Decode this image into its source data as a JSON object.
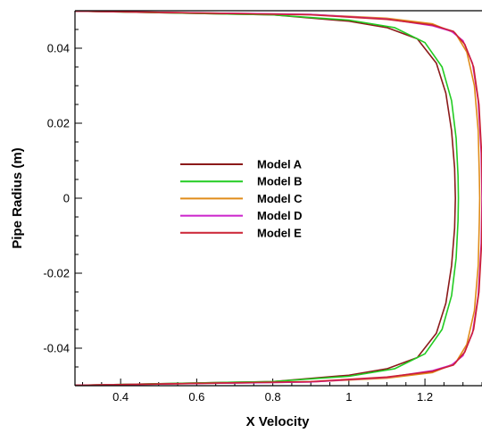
{
  "chart_data": {
    "type": "line",
    "xlabel": "X Velocity",
    "ylabel": "Pipe Radius (m)",
    "xlim": [
      0.28,
      1.35
    ],
    "ylim": [
      -0.05,
      0.05
    ],
    "x_ticks": [
      0.4,
      0.6,
      0.8,
      1,
      1.2
    ],
    "x_tick_labels": [
      "0.4",
      "0.6",
      "0.8",
      "1",
      "1.2"
    ],
    "y_ticks": [
      0.04,
      0.02,
      0,
      -0.02,
      -0.04
    ],
    "y_tick_labels": [
      "0.04",
      "0.02",
      "0",
      "-0.02",
      "-0.04"
    ],
    "legend_position": "center-left",
    "series": [
      {
        "name": "Model A",
        "color": "#8b1a1a",
        "points": [
          [
            0.28,
            0.0499
          ],
          [
            0.8,
            0.0489
          ],
          [
            1.0,
            0.0472
          ],
          [
            1.1,
            0.0455
          ],
          [
            1.18,
            0.0425
          ],
          [
            1.23,
            0.036
          ],
          [
            1.255,
            0.028
          ],
          [
            1.27,
            0.018
          ],
          [
            1.278,
            0.008
          ],
          [
            1.28,
            0.0
          ],
          [
            1.278,
            -0.008
          ],
          [
            1.27,
            -0.018
          ],
          [
            1.255,
            -0.028
          ],
          [
            1.23,
            -0.036
          ],
          [
            1.18,
            -0.0425
          ],
          [
            1.1,
            -0.0455
          ],
          [
            1.0,
            -0.0472
          ],
          [
            0.8,
            -0.0489
          ],
          [
            0.28,
            -0.0499
          ]
        ]
      },
      {
        "name": "Model B",
        "color": "#22cc22",
        "points": [
          [
            0.28,
            0.0499
          ],
          [
            0.8,
            0.0489
          ],
          [
            1.0,
            0.0475
          ],
          [
            1.12,
            0.0455
          ],
          [
            1.2,
            0.0415
          ],
          [
            1.245,
            0.035
          ],
          [
            1.27,
            0.026
          ],
          [
            1.282,
            0.016
          ],
          [
            1.287,
            0.006
          ],
          [
            1.288,
            0.0
          ],
          [
            1.287,
            -0.006
          ],
          [
            1.282,
            -0.016
          ],
          [
            1.27,
            -0.026
          ],
          [
            1.245,
            -0.035
          ],
          [
            1.2,
            -0.0415
          ],
          [
            1.12,
            -0.0455
          ],
          [
            1.0,
            -0.0475
          ],
          [
            0.8,
            -0.0489
          ],
          [
            0.28,
            -0.0499
          ]
        ]
      },
      {
        "name": "Model C",
        "color": "#e08c1a",
        "points": [
          [
            0.28,
            0.0499
          ],
          [
            0.9,
            0.049
          ],
          [
            1.1,
            0.048
          ],
          [
            1.22,
            0.0465
          ],
          [
            1.28,
            0.044
          ],
          [
            1.31,
            0.039
          ],
          [
            1.33,
            0.03
          ],
          [
            1.34,
            0.018
          ],
          [
            1.343,
            0.006
          ],
          [
            1.344,
            0.0
          ],
          [
            1.343,
            -0.006
          ],
          [
            1.34,
            -0.018
          ],
          [
            1.33,
            -0.03
          ],
          [
            1.31,
            -0.039
          ],
          [
            1.28,
            -0.044
          ],
          [
            1.22,
            -0.0465
          ],
          [
            1.1,
            -0.048
          ],
          [
            0.9,
            -0.049
          ],
          [
            0.28,
            -0.0499
          ]
        ]
      },
      {
        "name": "Model D",
        "color": "#cc22cc",
        "points": [
          [
            0.28,
            0.0499
          ],
          [
            0.9,
            0.049
          ],
          [
            1.1,
            0.0478
          ],
          [
            1.22,
            0.046
          ],
          [
            1.27,
            0.0445
          ],
          [
            1.3,
            0.042
          ],
          [
            1.325,
            0.036
          ],
          [
            1.34,
            0.026
          ],
          [
            1.348,
            0.012
          ],
          [
            1.35,
            0.0
          ],
          [
            1.348,
            -0.012
          ],
          [
            1.34,
            -0.026
          ],
          [
            1.325,
            -0.036
          ],
          [
            1.3,
            -0.042
          ],
          [
            1.27,
            -0.0445
          ],
          [
            1.22,
            -0.046
          ],
          [
            1.1,
            -0.0478
          ],
          [
            0.9,
            -0.049
          ],
          [
            0.28,
            -0.0499
          ]
        ]
      },
      {
        "name": "Model E",
        "color": "#cc2233",
        "points": [
          [
            0.28,
            0.0499
          ],
          [
            0.9,
            0.0489
          ],
          [
            1.1,
            0.0477
          ],
          [
            1.22,
            0.0462
          ],
          [
            1.275,
            0.0445
          ],
          [
            1.305,
            0.041
          ],
          [
            1.328,
            0.035
          ],
          [
            1.342,
            0.025
          ],
          [
            1.349,
            0.012
          ],
          [
            1.351,
            0.0
          ],
          [
            1.349,
            -0.012
          ],
          [
            1.342,
            -0.025
          ],
          [
            1.328,
            -0.035
          ],
          [
            1.305,
            -0.041
          ],
          [
            1.275,
            -0.0445
          ],
          [
            1.22,
            -0.0462
          ],
          [
            1.1,
            -0.0477
          ],
          [
            0.9,
            -0.0489
          ],
          [
            0.28,
            -0.0499
          ]
        ]
      }
    ]
  }
}
